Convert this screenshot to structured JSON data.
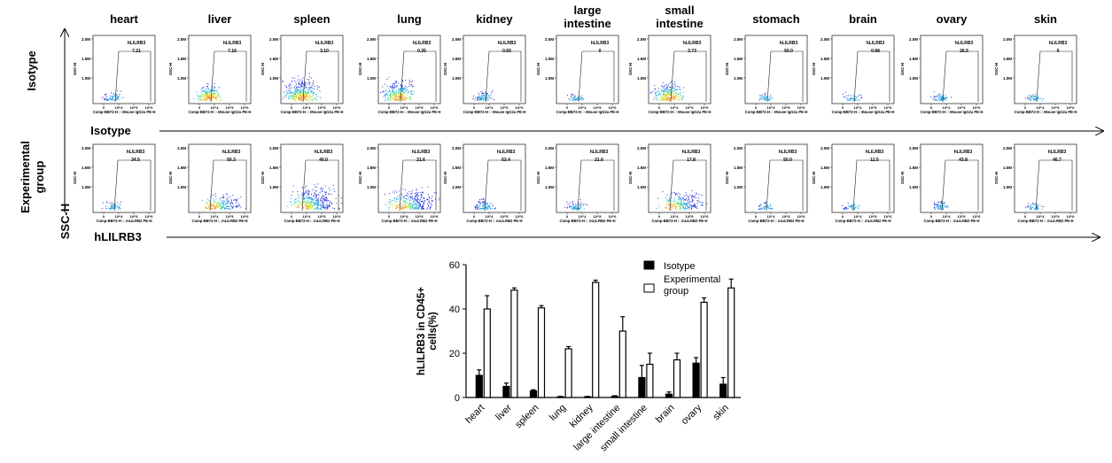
{
  "organs": [
    {
      "name": "heart",
      "lines": [
        "heart"
      ]
    },
    {
      "name": "liver",
      "lines": [
        "liver"
      ]
    },
    {
      "name": "spleen",
      "lines": [
        "spleen"
      ]
    },
    {
      "name": "lung",
      "lines": [
        "lung"
      ]
    },
    {
      "name": "kidney",
      "lines": [
        "kidney"
      ]
    },
    {
      "name": "large intestine",
      "lines": [
        "large",
        "intestine"
      ]
    },
    {
      "name": "small intestine",
      "lines": [
        "small",
        "intestine"
      ]
    },
    {
      "name": "stomach",
      "lines": [
        "stomach"
      ]
    },
    {
      "name": "brain",
      "lines": [
        "brain"
      ]
    },
    {
      "name": "ovary",
      "lines": [
        "ovary"
      ]
    },
    {
      "name": "skin",
      "lines": [
        "skin"
      ]
    }
  ],
  "flow": {
    "gate_label": "hLILRB3",
    "y_ticks": [
      "2.0M",
      "1.5M",
      "1.0M"
    ],
    "y_axis_label": "SSC-H",
    "x_ticks": [
      "0",
      "10^4",
      "10^5",
      "10^6"
    ],
    "rows": [
      {
        "row_label": [
          "Isotype"
        ],
        "x_axis_label": "Comp-BB72-H :: Mouse IgG2a PE-H",
        "arrow_label": "Isotype",
        "gate_values": [
          "7.21",
          "7.16",
          "3.10",
          "0.35",
          "0.55",
          "0",
          "3.73",
          "50.0",
          "0.98",
          "26.5",
          "0"
        ],
        "density": [
          0.15,
          0.6,
          1.0,
          0.85,
          0.2,
          0.1,
          0.75,
          0.08,
          0.08,
          0.15,
          0.08
        ]
      },
      {
        "row_label": [
          "Experimental",
          "group"
        ],
        "x_axis_label": "Comp-BB72-H :: mLILRB2 PE-H",
        "arrow_label": "hLILRB3",
        "gate_values": [
          "34.5",
          "50.3",
          "40.0",
          "21.6",
          "53.4",
          "21.6",
          "17.8",
          "50.0",
          "11.5",
          "43.8",
          "46.7"
        ],
        "density": [
          0.12,
          0.55,
          1.0,
          0.9,
          0.25,
          0.15,
          0.7,
          0.08,
          0.08,
          0.15,
          0.1
        ]
      }
    ],
    "shared_y_label": "SSC-H"
  },
  "chart_data": {
    "type": "bar",
    "categories": [
      "heart",
      "liver",
      "spleen",
      "lung",
      "kidney",
      "large intestine",
      "small intestine",
      "brain",
      "ovary",
      "skin"
    ],
    "series": [
      {
        "name": "Isotype",
        "values": [
          10,
          5,
          3,
          0.3,
          0.3,
          0.5,
          9,
          1.5,
          15.5,
          6
        ],
        "errors": [
          2.5,
          1.5,
          0.5,
          0.2,
          0.2,
          0.3,
          5.5,
          1,
          2.5,
          3
        ],
        "color": "#000000"
      },
      {
        "name": "Experimental group",
        "values": [
          40,
          48.5,
          40.5,
          22,
          52,
          30,
          15,
          17,
          43,
          49.5
        ],
        "errors": [
          6,
          1,
          1,
          1,
          1,
          6.5,
          5,
          3,
          2,
          4
        ],
        "color": "#ffffff"
      }
    ],
    "ylabel": "hLILRB3 in CD45+ cells(%)",
    "ylim": [
      0,
      60
    ],
    "yticks": [
      0,
      20,
      40,
      60
    ],
    "legend_position": "top-right"
  }
}
